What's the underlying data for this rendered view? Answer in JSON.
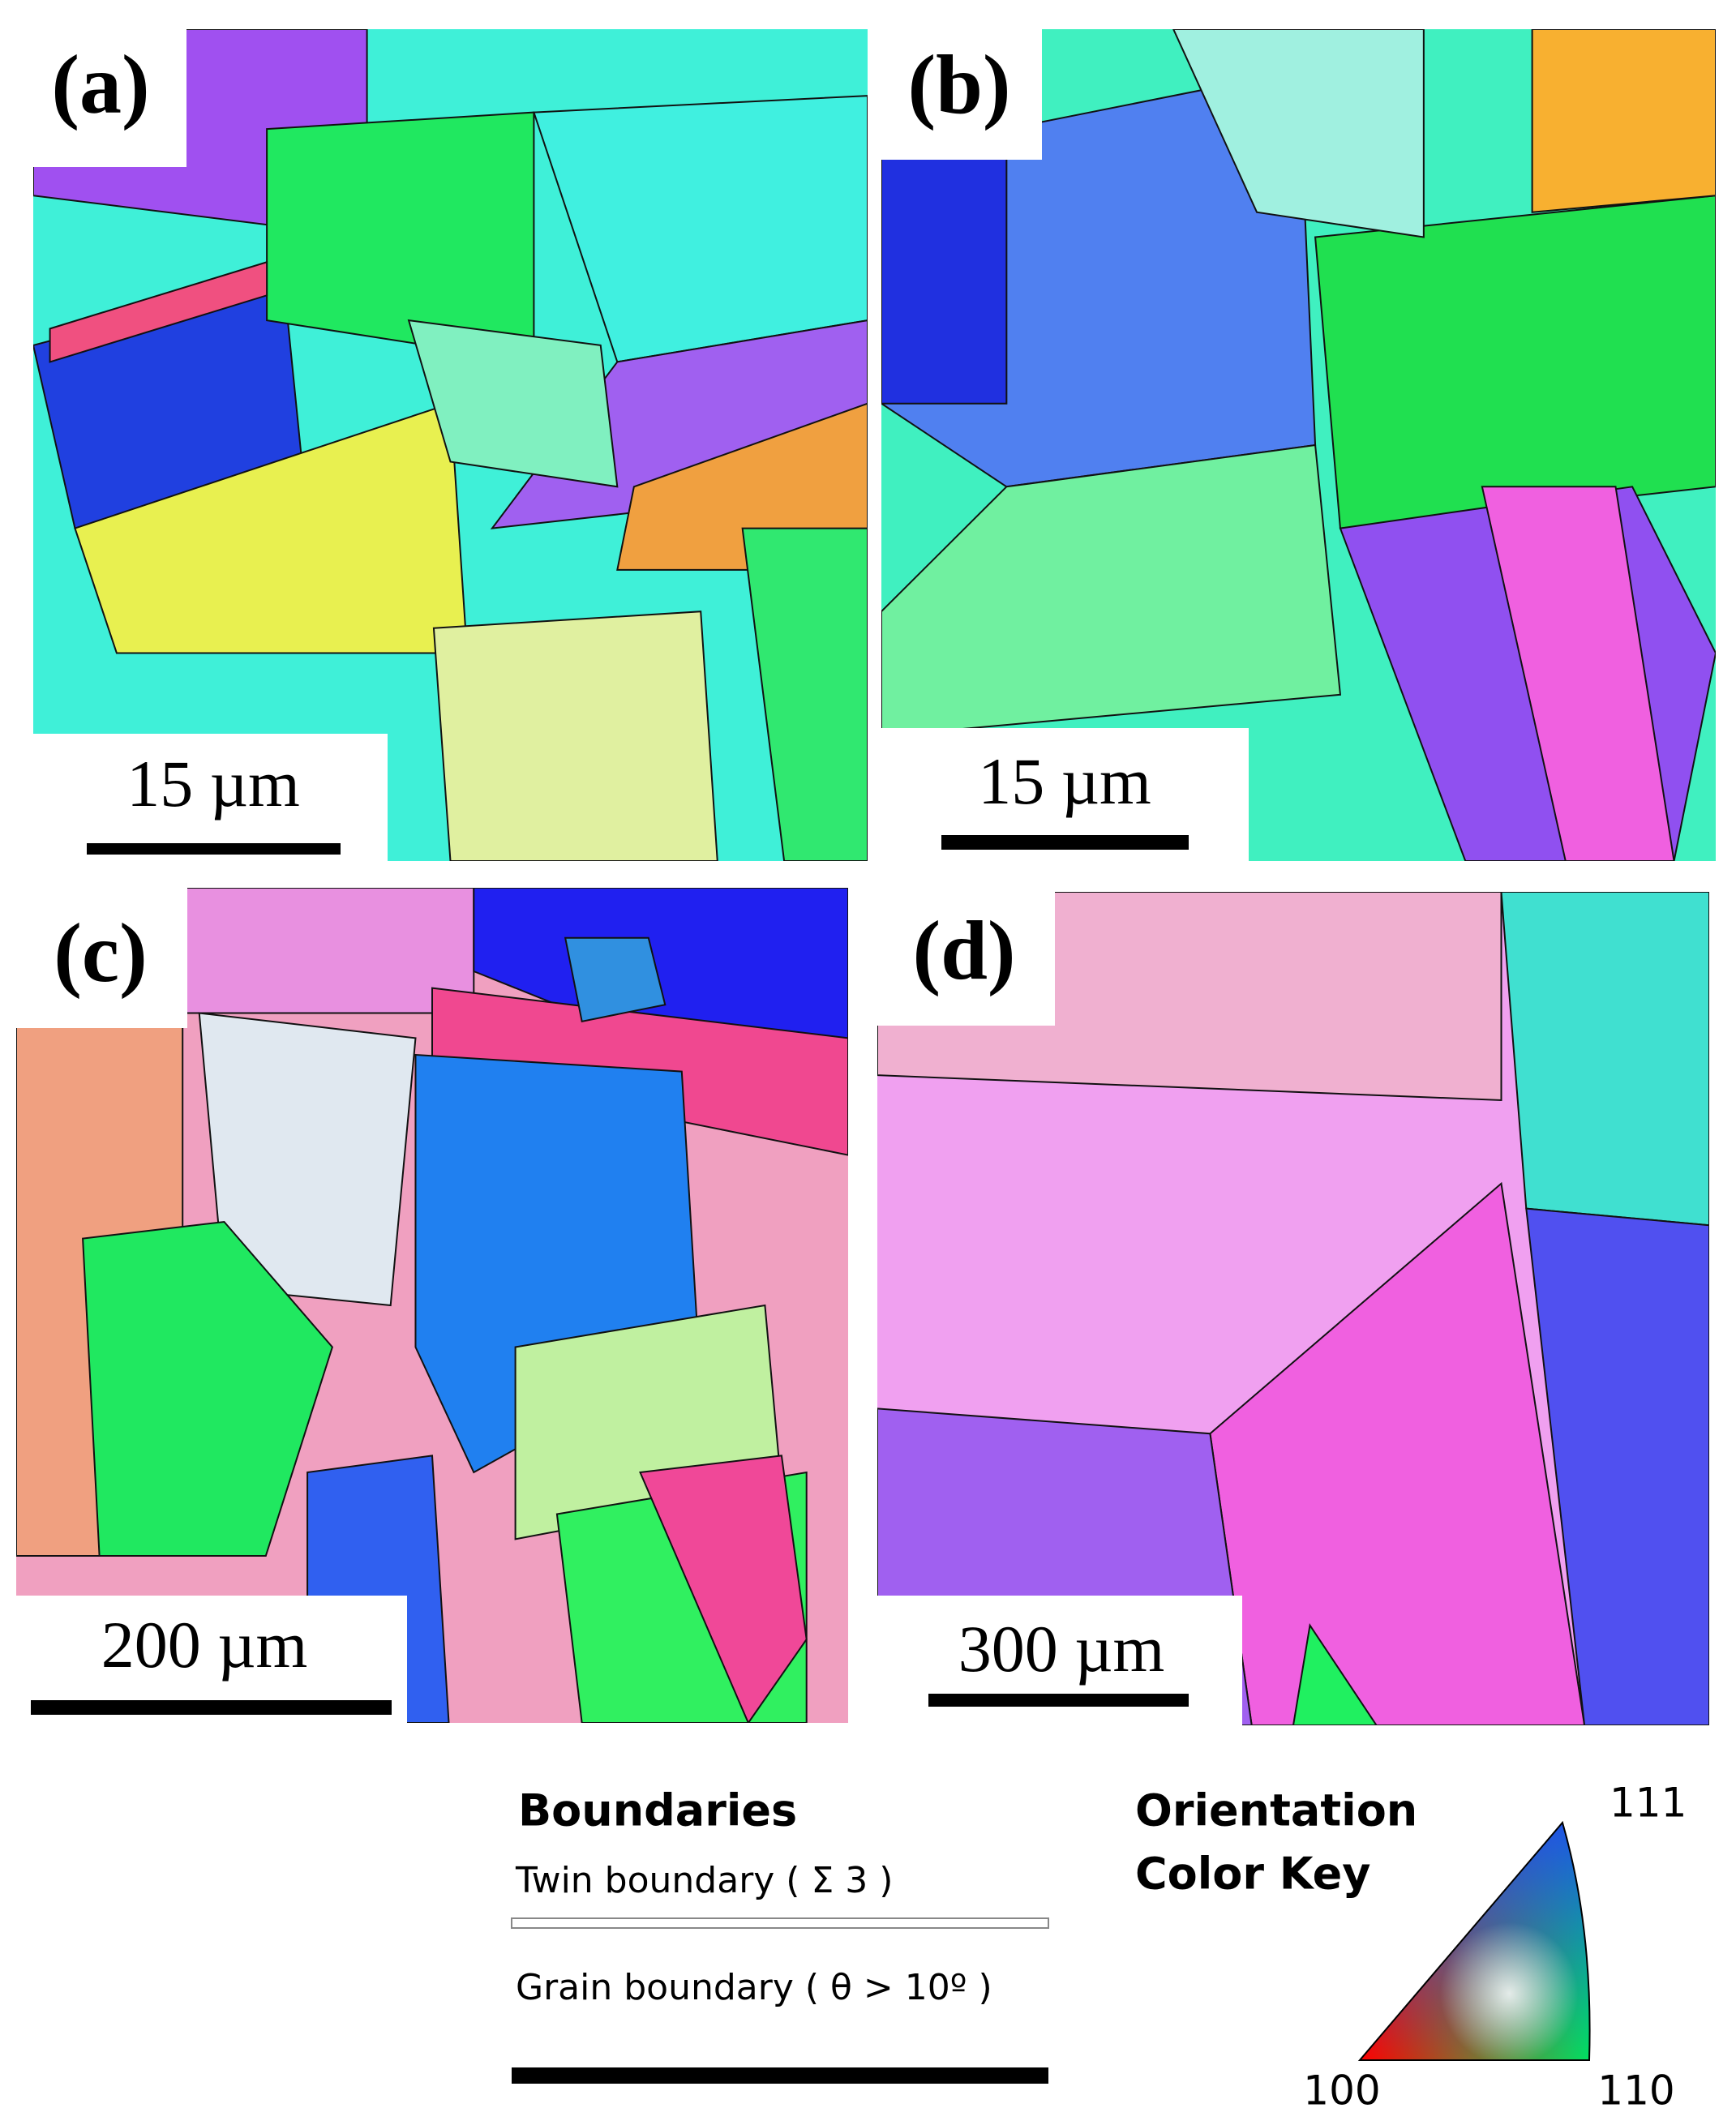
{
  "panels": [
    {
      "label": "(a)",
      "scale_bar": "15 µm"
    },
    {
      "label": "(b)",
      "scale_bar": "15 µm"
    },
    {
      "label": "(c)",
      "scale_bar": "200 µm"
    },
    {
      "label": "(d)",
      "scale_bar": "300 µm"
    }
  ],
  "legend": {
    "boundaries": {
      "title": "Boundaries",
      "twin": "Twin boundary ( Σ 3 )",
      "grain": "Grain boundary ( θ > 10º )"
    },
    "color_key": {
      "title": [
        "Orientation",
        "Color Key"
      ],
      "top": "111",
      "left": "100",
      "right": "110"
    }
  }
}
